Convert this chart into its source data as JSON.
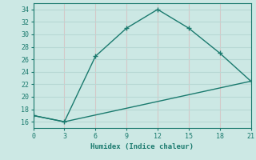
{
  "xlabel": "Humidex (Indice chaleur)",
  "line1_x": [
    0,
    3,
    6,
    9,
    12,
    15,
    18,
    21
  ],
  "line1_y": [
    17,
    16,
    26.5,
    31,
    34,
    31,
    27,
    22.5
  ],
  "line2_x": [
    0,
    3,
    21
  ],
  "line2_y": [
    17,
    16,
    22.5
  ],
  "color": "#1a7a6e",
  "bg_color": "#cce8e4",
  "grid_color_h": "#b8d8d4",
  "grid_color_v": "#d4c8c8",
  "xlim": [
    0,
    21
  ],
  "ylim": [
    15.0,
    35.0
  ],
  "xticks": [
    0,
    3,
    6,
    9,
    12,
    15,
    18,
    21
  ],
  "yticks": [
    16,
    18,
    20,
    22,
    24,
    26,
    28,
    30,
    32,
    34
  ]
}
